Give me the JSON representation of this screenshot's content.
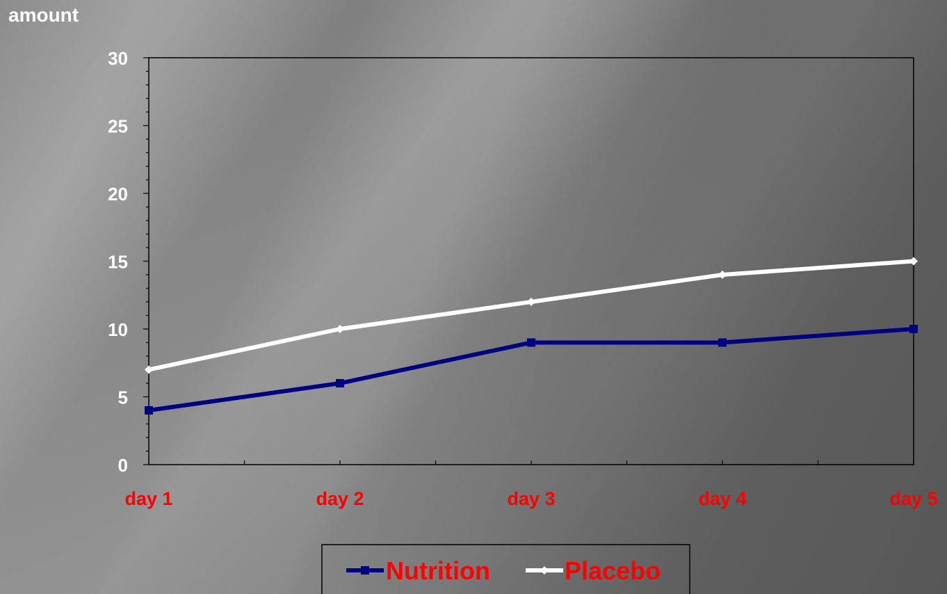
{
  "chart_data": {
    "type": "line",
    "title": "",
    "xlabel": "",
    "ylabel": "amount",
    "categories": [
      "day 1",
      "day 2",
      "day 3",
      "day 4",
      "day 5"
    ],
    "ylim": [
      0,
      30
    ],
    "yticks": [
      0,
      5,
      10,
      15,
      20,
      25,
      30
    ],
    "grid": false,
    "legend": "bottom-center",
    "series": [
      {
        "name": "Nutrition",
        "values": [
          4,
          6,
          9,
          9,
          10
        ],
        "color": "#000080",
        "marker": "square"
      },
      {
        "name": "Placebo",
        "values": [
          7,
          10,
          12,
          14,
          15
        ],
        "color": "#ffffff",
        "marker": "diamond"
      }
    ],
    "label_colors": {
      "ylabel": "#ffffff",
      "ytick": "#ffffff",
      "xtick": "#ff0000",
      "legend": "#ff0000"
    }
  }
}
